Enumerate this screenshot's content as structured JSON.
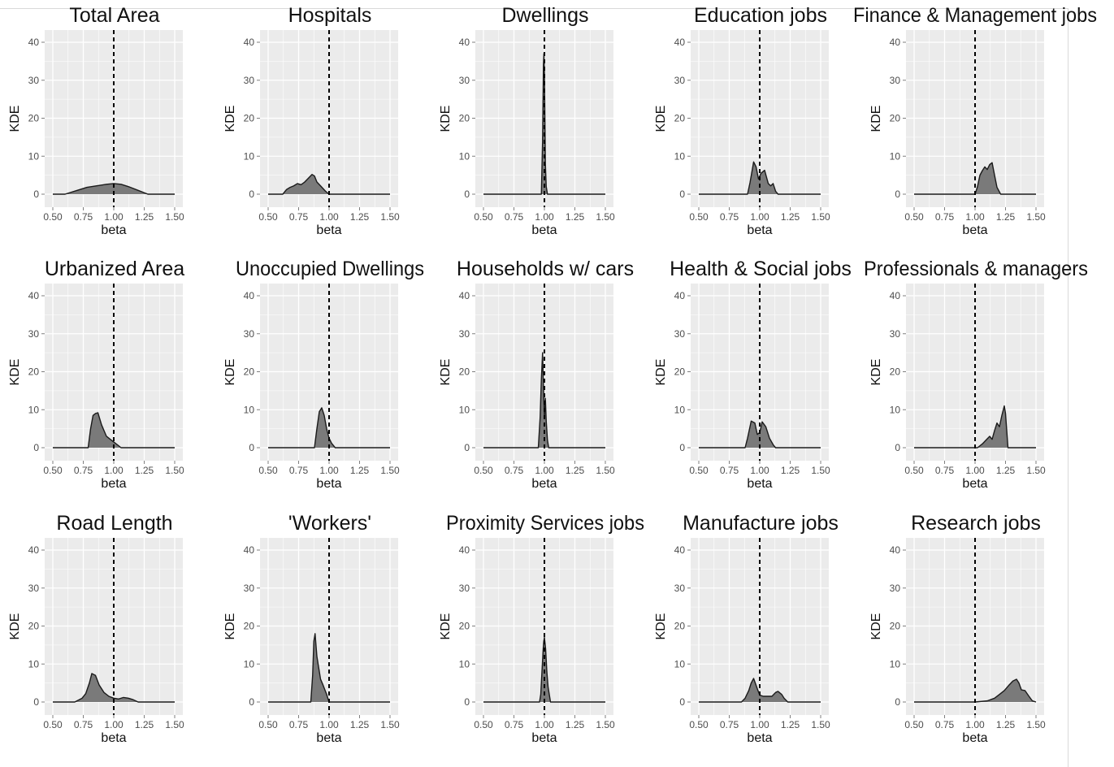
{
  "chart_data": {
    "type": "area",
    "layout": {
      "rows": 3,
      "cols": 5
    },
    "xlabel": "beta",
    "ylabel": "KDE",
    "xlim": [
      0.5,
      1.5
    ],
    "ylim": [
      0,
      40
    ],
    "x_ticks": [
      "0.50",
      "0.75",
      "1.00",
      "1.25",
      "1.50"
    ],
    "y_ticks": [
      "0",
      "10",
      "20",
      "30",
      "40"
    ],
    "reference_line": {
      "x": 1.0,
      "style": "dashed"
    },
    "grid": true,
    "colors": {
      "panel_bg": "#ebebeb",
      "grid": "#ffffff",
      "fill": "#7a7a7a",
      "line": "#1a1a1a"
    },
    "panels": [
      {
        "title": "Total Area",
        "x": [
          0.5,
          0.6,
          0.7,
          0.78,
          0.86,
          0.94,
          1.0,
          1.06,
          1.12,
          1.2,
          1.28,
          1.5
        ],
        "y": [
          0,
          0,
          1,
          1.8,
          2.2,
          2.6,
          2.8,
          2.6,
          2.0,
          1.0,
          0,
          0
        ]
      },
      {
        "title": "Hospitals",
        "x": [
          0.5,
          0.62,
          0.65,
          0.68,
          0.71,
          0.74,
          0.77,
          0.8,
          0.83,
          0.86,
          0.88,
          0.9,
          0.93,
          0.97,
          1.0,
          1.5
        ],
        "y": [
          0,
          0,
          1.2,
          1.8,
          2.2,
          2.8,
          2.5,
          3.2,
          4.2,
          5.2,
          4.8,
          3.2,
          2.2,
          0.8,
          0,
          0
        ]
      },
      {
        "title": "Dwellings",
        "x": [
          0.5,
          0.975,
          0.985,
          0.992,
          0.996,
          1.0,
          1.004,
          1.008,
          1.015,
          1.025,
          1.5
        ],
        "y": [
          0,
          0,
          14,
          34,
          37,
          32,
          20,
          8,
          2,
          0,
          0
        ]
      },
      {
        "title": "Education jobs",
        "x": [
          0.5,
          0.9,
          0.92,
          0.95,
          0.97,
          0.99,
          1.01,
          1.04,
          1.07,
          1.09,
          1.11,
          1.13,
          1.15,
          1.5
        ],
        "y": [
          0,
          0,
          3,
          8.5,
          7.2,
          4,
          5.5,
          6.3,
          2.8,
          2.2,
          2.8,
          0.8,
          0,
          0
        ]
      },
      {
        "title": "Finance & Management jobs",
        "x": [
          0.5,
          1.0,
          1.02,
          1.04,
          1.06,
          1.08,
          1.1,
          1.12,
          1.14,
          1.16,
          1.18,
          1.21,
          1.5
        ],
        "y": [
          0,
          0,
          2,
          5,
          6.2,
          7.2,
          6.5,
          7.8,
          8.3,
          5,
          1.8,
          0,
          0
        ]
      },
      {
        "title": "Urbanized Area",
        "x": [
          0.5,
          0.79,
          0.81,
          0.83,
          0.85,
          0.87,
          0.9,
          0.94,
          0.98,
          1.02,
          1.06,
          1.5
        ],
        "y": [
          0,
          0,
          5,
          8.5,
          9,
          9.2,
          6,
          3,
          2,
          1,
          0,
          0
        ]
      },
      {
        "title": "Unoccupied Dwellings",
        "x": [
          0.5,
          0.88,
          0.9,
          0.92,
          0.94,
          0.96,
          0.98,
          1.0,
          1.02,
          1.05,
          1.5
        ],
        "y": [
          0,
          0,
          5,
          9.5,
          10.5,
          8.5,
          5,
          2.5,
          1.2,
          0,
          0
        ]
      },
      {
        "title": "Households w/ cars",
        "x": [
          0.5,
          0.95,
          0.965,
          0.975,
          0.985,
          0.992,
          1.0,
          1.008,
          1.015,
          1.025,
          1.035,
          1.5
        ],
        "y": [
          0,
          0,
          8,
          18,
          25,
          17,
          8,
          13,
          7,
          2,
          0,
          0
        ]
      },
      {
        "title": "Health & Social jobs",
        "x": [
          0.5,
          0.88,
          0.9,
          0.93,
          0.96,
          0.98,
          1.0,
          1.02,
          1.05,
          1.08,
          1.11,
          1.13,
          1.5
        ],
        "y": [
          0,
          0,
          2.5,
          7,
          6.5,
          3.5,
          4,
          6.8,
          5.5,
          2.5,
          0.8,
          0,
          0
        ]
      },
      {
        "title": "Professionals & managers",
        "x": [
          0.5,
          1.02,
          1.06,
          1.09,
          1.12,
          1.14,
          1.16,
          1.18,
          1.2,
          1.22,
          1.24,
          1.25,
          1.27,
          1.5
        ],
        "y": [
          0,
          0,
          1,
          2,
          3,
          2.2,
          4.5,
          6.5,
          5.5,
          8.5,
          11,
          9,
          0,
          0
        ]
      },
      {
        "title": "Road Length",
        "x": [
          0.5,
          0.68,
          0.74,
          0.77,
          0.8,
          0.82,
          0.85,
          0.88,
          0.92,
          0.96,
          1.0,
          1.04,
          1.08,
          1.12,
          1.16,
          1.2,
          1.5
        ],
        "y": [
          0,
          0,
          1,
          2.2,
          5,
          7.5,
          7,
          4.5,
          2.5,
          1.5,
          1,
          0.8,
          1.2,
          1,
          0.6,
          0,
          0
        ]
      },
      {
        "title": "'Workers'",
        "x": [
          0.5,
          0.85,
          0.865,
          0.875,
          0.885,
          0.9,
          0.915,
          0.93,
          0.95,
          0.98,
          1.0,
          1.5
        ],
        "y": [
          0,
          0,
          7,
          16,
          18,
          12,
          9,
          6,
          4.5,
          2,
          0,
          0
        ]
      },
      {
        "title": "Proximity Services jobs",
        "x": [
          0.5,
          0.96,
          0.97,
          0.98,
          0.99,
          0.995,
          1.0,
          1.01,
          1.02,
          1.03,
          1.05,
          1.5
        ],
        "y": [
          0,
          0,
          2,
          8,
          14,
          16,
          17,
          14,
          8,
          4,
          0,
          0
        ]
      },
      {
        "title": "Manufacture jobs",
        "x": [
          0.5,
          0.85,
          0.88,
          0.91,
          0.93,
          0.95,
          0.98,
          1.0,
          1.03,
          1.06,
          1.1,
          1.13,
          1.15,
          1.18,
          1.2,
          1.23,
          1.5
        ],
        "y": [
          0,
          0,
          1,
          3,
          5,
          6.2,
          3.5,
          1.8,
          1.5,
          1.5,
          1.5,
          2.5,
          2.8,
          2,
          1,
          0,
          0
        ]
      },
      {
        "title": "Research jobs",
        "x": [
          0.5,
          1.0,
          1.1,
          1.16,
          1.2,
          1.24,
          1.28,
          1.31,
          1.34,
          1.36,
          1.38,
          1.41,
          1.44,
          1.47,
          1.5
        ],
        "y": [
          0,
          0,
          0.3,
          1,
          2,
          3,
          4.5,
          5.5,
          6,
          5,
          3.2,
          3,
          1.6,
          0.3,
          0
        ]
      }
    ]
  }
}
